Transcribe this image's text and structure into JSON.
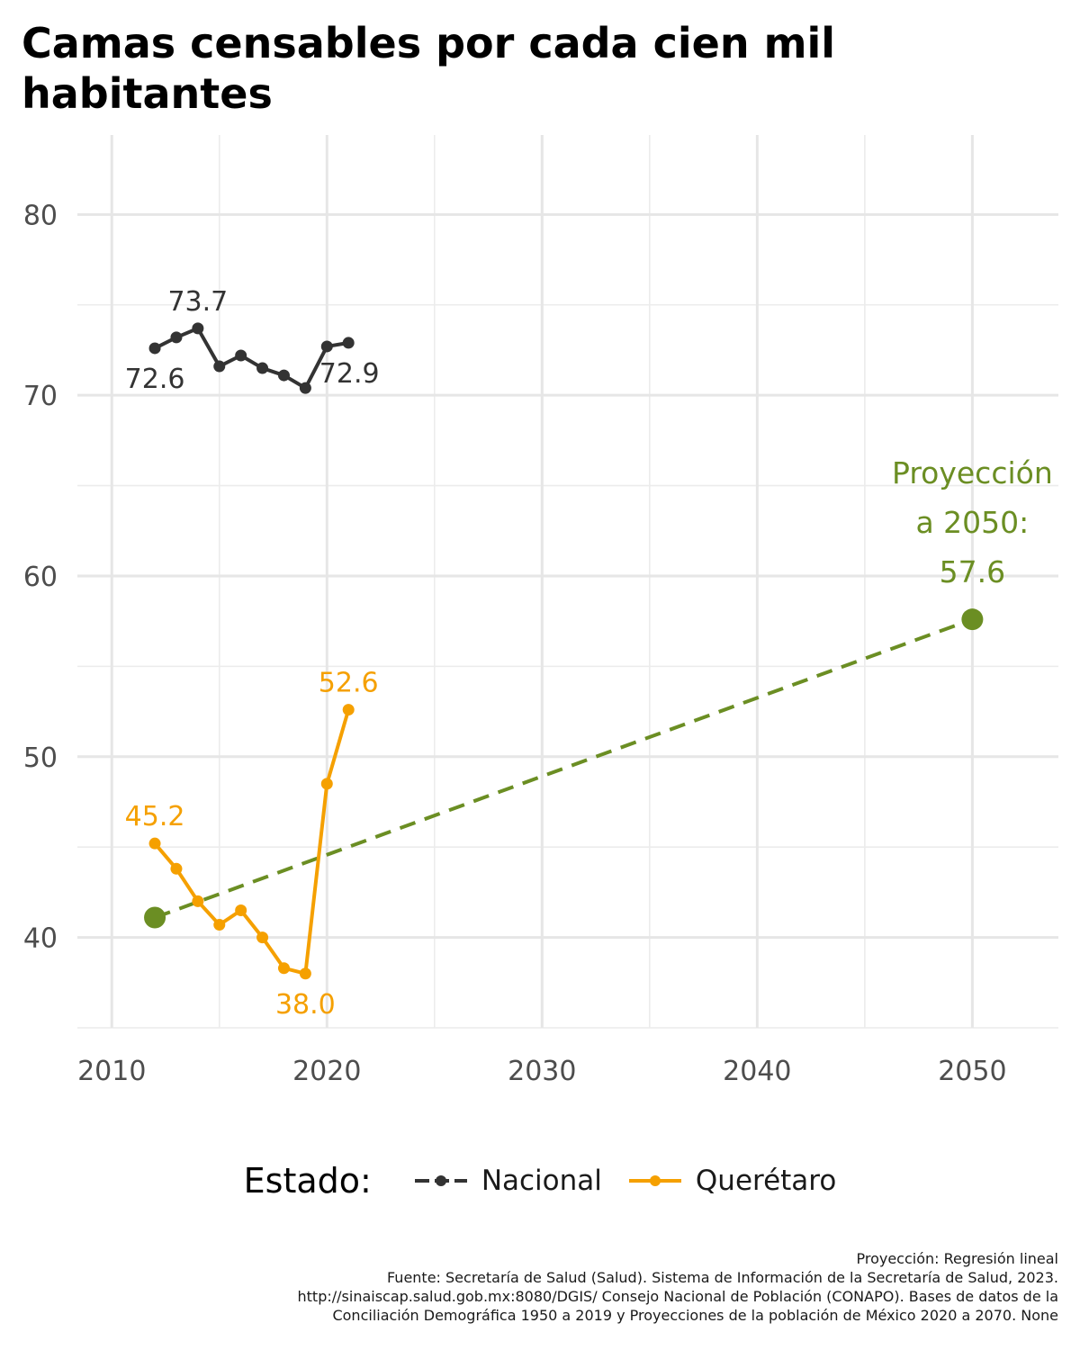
{
  "chart_data": {
    "type": "line",
    "title": "Camas censables por cada cien mil habitantes",
    "xlabel": "",
    "ylabel": "",
    "xlim": [
      2008.4,
      2054
    ],
    "ylim": [
      35,
      84.4
    ],
    "x_ticks": [
      2010,
      2020,
      2030,
      2040,
      2050
    ],
    "y_ticks": [
      40,
      50,
      60,
      70,
      80
    ],
    "grid": true,
    "legend": {
      "title": "Estado:",
      "position": "bottom"
    },
    "series": [
      {
        "name": "Nacional",
        "color": "#333333",
        "x": [
          2012,
          2013,
          2014,
          2015,
          2016,
          2017,
          2018,
          2019,
          2020,
          2021
        ],
        "values": [
          72.6,
          73.2,
          73.7,
          71.6,
          72.2,
          71.5,
          71.1,
          70.4,
          72.7,
          72.9
        ],
        "labels": [
          {
            "x": 2012,
            "y": 72.6,
            "text": "72.6",
            "position": "below"
          },
          {
            "x": 2014,
            "y": 73.7,
            "text": "73.7",
            "position": "above"
          },
          {
            "x": 2021,
            "y": 72.9,
            "text": "72.9",
            "position": "below"
          }
        ]
      },
      {
        "name": "Querétaro",
        "color": "#f5a000",
        "x": [
          2012,
          2013,
          2014,
          2015,
          2016,
          2017,
          2018,
          2019,
          2020,
          2021
        ],
        "values": [
          45.2,
          43.8,
          42.0,
          40.7,
          41.5,
          40.0,
          38.3,
          38.0,
          48.5,
          52.6
        ],
        "labels": [
          {
            "x": 2012,
            "y": 45.2,
            "text": "45.2",
            "position": "above"
          },
          {
            "x": 2019,
            "y": 38.0,
            "text": "38.0",
            "position": "below"
          },
          {
            "x": 2021,
            "y": 52.6,
            "text": "52.6",
            "position": "above"
          }
        ]
      }
    ],
    "projection": {
      "color": "#6b8e23",
      "style": "dashed",
      "x": [
        2012,
        2050
      ],
      "values": [
        41.1,
        57.6
      ],
      "annotation": [
        "Proyección",
        "a 2050:",
        "57.6"
      ]
    }
  },
  "caption": [
    "Proyección: Regresión lineal",
    "Fuente: Secretaría de Salud (Salud). Sistema de Información de la Secretaría de Salud, 2023.",
    "http://sinaiscap.salud.gob.mx:8080/DGIS/ Consejo Nacional de Población (CONAPO). Bases de datos de la",
    "Conciliación Demográfica 1950 a 2019 y Proyecciones de la población de México 2020 a 2070. None"
  ]
}
